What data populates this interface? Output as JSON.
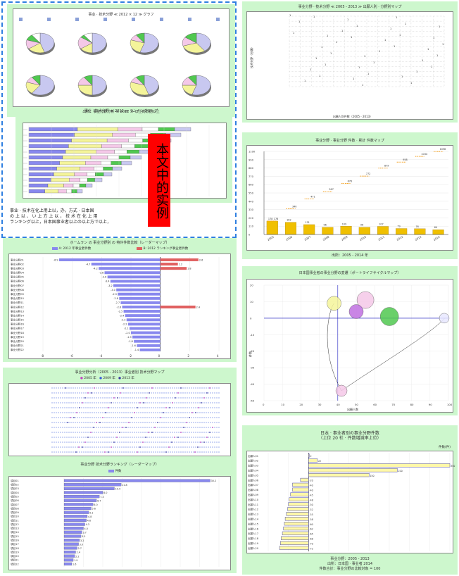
{
  "callout": {
    "label": "本文中的实例"
  },
  "note": {
    "line1": "事业 · 技术在化上用上以，办，方式 · 日本国",
    "line2": "の 上 以 、 い 上 方 上 以 ， 技 术 在 化 上 用",
    "line3": "ランキング以上，日本国事业者以上の以上方で以上，"
  },
  "panels": {
    "pies": {
      "title1": "事业 · 技术分野 ≪ 2012 × 12 ≫ グラフ",
      "title2": "事业 · 技术分野 ≪ 2012 ≫ ランキングマップ",
      "caption": "出所：事业分野分析 ≪ 2012 ≫ 以上的数据以上"
    },
    "stacked": {
      "title": "事业 · 技术分野 ≪ 2012 ≫ ランキングマップ"
    },
    "diverging": {
      "title": "ホームラン の 事业分野别 の 特许件数比較（レーダーマップ）",
      "legend_a": "A: 2012 年事业者件数",
      "legend_b": "B: 2012 ランキング事业者件数"
    },
    "timeline": {
      "title": "事业分野分析（2005 - 2013）事业者別 技术分野マップ",
      "legend": [
        "2005 年",
        "2009 年",
        "2013 年"
      ]
    },
    "hbar": {
      "title": "事业分野 技术分野ランキング（レーダーマップ）",
      "legend": "件数"
    },
    "scatter_grid": {
      "title": "事业分野 · 技术分野 ≪ 2005 - 2013 ≫ 出願人別 · 分野別マップ",
      "ylabel": "技术分野（分類）",
      "xlabel": "出願人別件数（2005 - 2013）"
    },
    "line": {
      "title": "事业分野 · 事业分野 件数 · 累計 件数マップ",
      "footer": "出所：2005 - 2014 年"
    },
    "bubble": {
      "title": "日本国事业者の事业分野の変遷（ポートライフサイクルマップ）",
      "ylabel": "件数",
      "xlabel": "出願人数"
    },
    "rank": {
      "title1": "日本 · 事业者別の事业分野件数",
      "title2": "（上位 20 社 · 件数増減率上位）",
      "unit": "件数(件)",
      "footer1": "事业分野：2005 - 2013",
      "footer2": "出所：日本国 · 事业者 2014",
      "footer3": "件数合計：事业分野の比較対象 = 100"
    }
  },
  "chart_data": [
    {
      "id": "line",
      "type": "bar",
      "title": "事业分野 · 事业分野 件数 · 累計 件数マップ",
      "categories": [
        "2005",
        "2006",
        "2007",
        "2008",
        "2009",
        "2010",
        "2011",
        "2012",
        "2013",
        "2014"
      ],
      "values": [
        178,
        162,
        131,
        96,
        109,
        96,
        107,
        79,
        76,
        64
      ],
      "line_values": [
        178,
        340,
        471,
        567,
        676,
        772,
        879,
        958,
        1034,
        1098
      ],
      "ylim": [
        0,
        1100
      ],
      "yticks": [
        "0",
        "110",
        "220",
        "330",
        "440",
        "550",
        "660",
        "770",
        "880",
        "990",
        "1100"
      ]
    },
    {
      "id": "diverging",
      "type": "bar",
      "title": "ホームラン の 事业分野别 の 特许件数比較",
      "categories": [
        "事业分野01",
        "事业分野02",
        "事业分野03",
        "事业分野04",
        "事业分野05",
        "事业分野06",
        "事业分野07",
        "事业分野08",
        "事业分野09",
        "事业分野10",
        "事业分野11",
        "事业分野12",
        "事业分野13",
        "事业分野14",
        "事业分野15",
        "事业分野16",
        "事业分野17",
        "事业分野18",
        "事业分野19",
        "事业分野20",
        "事业分野21",
        "事业分野22"
      ],
      "values": [
        -6.9,
        -4.7,
        -4.2,
        -3.8,
        -3.6,
        -3.4,
        -3.2,
        -3.0,
        -2.9,
        -2.8,
        -2.7,
        -2.6,
        -2.5,
        -2.4,
        -2.3,
        -2.2,
        -2.1,
        -2.0,
        -1.9,
        -1.8,
        -1.6,
        -1.4
      ],
      "values_b": [
        2.6,
        1.2,
        1.8,
        0.0,
        0.0,
        0.0,
        0.0,
        0.0,
        0.0,
        0.0,
        0.0,
        2.4,
        0.0,
        0.0,
        0.0,
        0.0,
        0.0,
        0.0,
        0.0,
        0.0,
        0.0,
        0.0
      ],
      "ylim": [
        -8,
        4
      ]
    },
    {
      "id": "hbar",
      "type": "bar",
      "categories": [
        "項目01",
        "項目02",
        "項目03",
        "項目04",
        "項目05",
        "項目06",
        "項目07",
        "項目08",
        "項目09",
        "項目10",
        "項目11",
        "項目12",
        "項目13",
        "項目14",
        "項目15",
        "項目16",
        "項目17",
        "項目18",
        "項目19",
        "項目20",
        "項目21",
        "項目22"
      ],
      "values": [
        30.2,
        11.8,
        10.4,
        8.0,
        7.3,
        6.7,
        6.0,
        5.6,
        5.1,
        4.8,
        4.6,
        4.3,
        4.0,
        3.7,
        3.5,
        3.2,
        3.0,
        2.7,
        2.4,
        2.2,
        1.9,
        1.6
      ],
      "ylim": [
        0,
        32
      ]
    },
    {
      "id": "bubble",
      "type": "scatter",
      "x": [
        55,
        38,
        42,
        50,
        68,
        102
      ],
      "y": [
        11,
        9,
        -44,
        4,
        1,
        0
      ],
      "size": [
        12,
        10,
        8,
        10,
        13,
        7
      ],
      "xlim": [
        0,
        100
      ],
      "ylim": [
        -50,
        20
      ],
      "xticks": [
        "0",
        "10",
        "20",
        "30",
        "40",
        "50",
        "60",
        "70",
        "80",
        "90",
        "100"
      ],
      "yticks": [
        "20",
        "10",
        "0",
        "-10",
        "-20",
        "-30",
        "-40",
        "-50"
      ]
    },
    {
      "id": "rank",
      "type": "bar",
      "categories": [
        "出願人01",
        "出願人02",
        "出願人03",
        "出願人04",
        "出願人05",
        "出願人06",
        "出願人07",
        "出願人08",
        "出願人09",
        "出願人10",
        "出願人11",
        "出願人12",
        "出願人13",
        "出願人14",
        "出願人15",
        "出願人16",
        "出願人17",
        "出願人18",
        "出願人19",
        "出願人20"
      ],
      "values": [
        2,
        22,
        350,
        220,
        150,
        -20,
        -40,
        -40,
        -45,
        -48,
        -50,
        -52,
        -55,
        -58,
        -60,
        -62,
        -65,
        -68,
        -70,
        -72
      ],
      "ylim": [
        -100,
        350
      ]
    }
  ]
}
